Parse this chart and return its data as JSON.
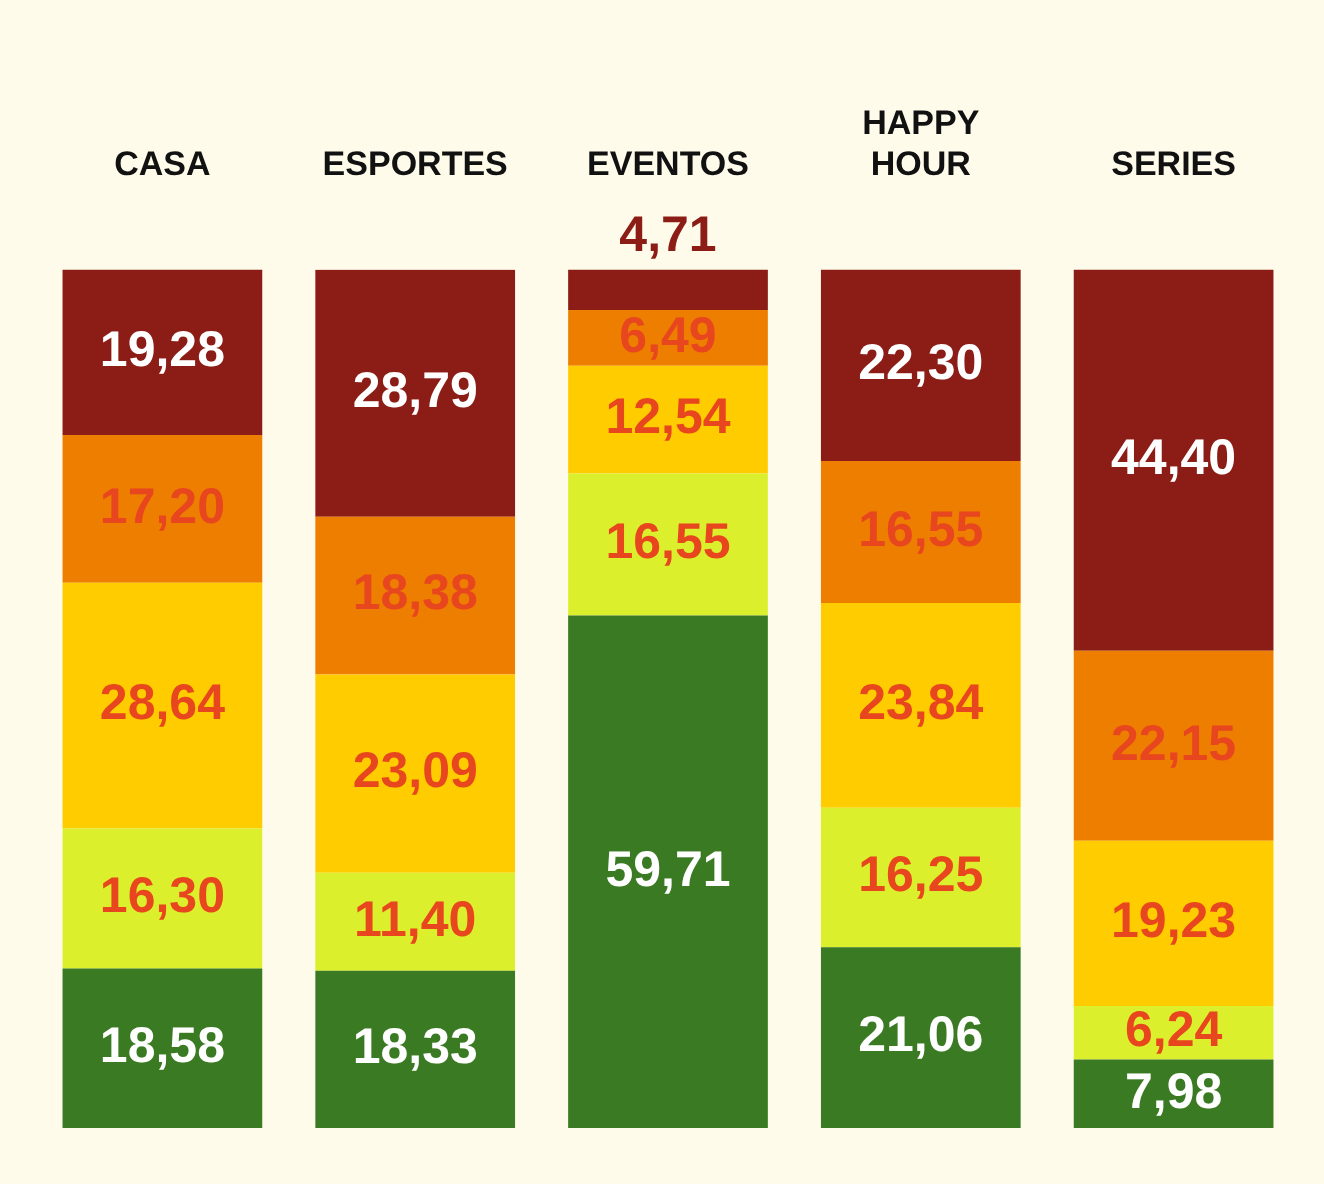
{
  "chart_data": {
    "type": "bar",
    "stacked": true,
    "categories": [
      "CASA",
      "ESPORTES",
      "EVENTOS",
      "HAPPY HOUR",
      "SERIES"
    ],
    "ylim": [
      0,
      100
    ],
    "tick_labels": "x",
    "grid": false,
    "legend": false,
    "series": [
      {
        "color": "#3a7a22",
        "values": [
          18.58,
          18.33,
          59.71,
          21.06,
          7.98
        ],
        "value_labels": [
          "18,58",
          "18,33",
          "59,71",
          "21,06",
          "7,98"
        ]
      },
      {
        "color": "#dcef2c",
        "values": [
          16.3,
          11.4,
          16.55,
          16.25,
          6.24
        ],
        "value_labels": [
          "16,30",
          "11,40",
          "16,55",
          "16,25",
          "6,24"
        ]
      },
      {
        "color": "#ffcc00",
        "values": [
          28.64,
          23.09,
          12.54,
          23.84,
          19.23
        ],
        "value_labels": [
          "28,64",
          "23,09",
          "12,54",
          "23,84",
          "19,23"
        ]
      },
      {
        "color": "#ee7e00",
        "values": [
          17.2,
          18.38,
          6.49,
          16.55,
          22.15
        ],
        "value_labels": [
          "17,20",
          "18,38",
          "6,49",
          "16,55",
          "22,15"
        ]
      },
      {
        "color": "#8b1c16",
        "values": [
          19.28,
          28.79,
          4.71,
          22.3,
          44.4
        ],
        "value_labels": [
          "19,28",
          "28,79",
          "4,71",
          "22,30",
          "44,40"
        ]
      }
    ]
  }
}
